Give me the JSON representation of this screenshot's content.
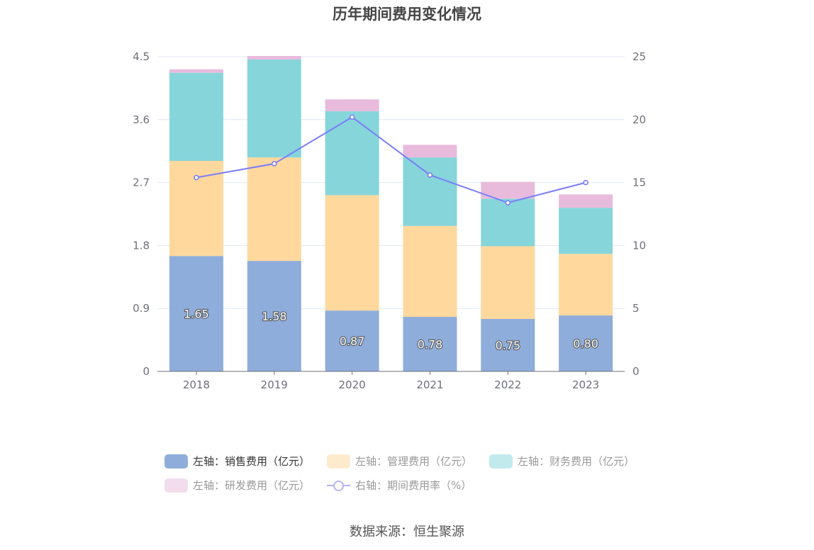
{
  "chart_data": {
    "type": "bar",
    "title": "历年期间费用变化情况",
    "categories": [
      "2018",
      "2019",
      "2020",
      "2021",
      "2022",
      "2023"
    ],
    "series": [
      {
        "name": "左轴：销售费用（亿元）",
        "axis": "left",
        "type": "bar",
        "color": "#8eaddb",
        "values": [
          1.65,
          1.58,
          0.87,
          0.78,
          0.75,
          0.8
        ],
        "labels": [
          "1.65",
          "1.58",
          "0.87",
          "0.78",
          "0.75",
          "0.80"
        ]
      },
      {
        "name": "左轴：管理费用（亿元）",
        "axis": "left",
        "type": "bar",
        "color": "#fed89d",
        "values": [
          1.36,
          1.48,
          1.65,
          1.3,
          1.04,
          0.88
        ]
      },
      {
        "name": "左轴：财务费用（亿元）",
        "axis": "left",
        "type": "bar",
        "color": "#86d5da",
        "values": [
          1.26,
          1.4,
          1.2,
          0.98,
          0.68,
          0.66
        ]
      },
      {
        "name": "左轴：研发费用（亿元）",
        "axis": "left",
        "type": "bar",
        "color": "#e8bbdc",
        "values": [
          0.05,
          0.05,
          0.17,
          0.18,
          0.24,
          0.19
        ]
      },
      {
        "name": "右轴：期间费用率（%）",
        "axis": "right",
        "type": "line",
        "color": "#7b7ef6",
        "values": [
          15.4,
          16.5,
          20.2,
          15.6,
          13.4,
          15.0
        ]
      }
    ],
    "left_axis": {
      "ylim": [
        0,
        4.5
      ],
      "ticks": [
        "0",
        "0.9",
        "1.8",
        "2.7",
        "3.6",
        "4.5"
      ]
    },
    "right_axis": {
      "ylim": [
        0,
        25
      ],
      "ticks": [
        "0",
        "5",
        "10",
        "15",
        "20",
        "25"
      ]
    },
    "grid": true,
    "legend_position": "bottom"
  },
  "source": "数据来源：恒生聚源"
}
